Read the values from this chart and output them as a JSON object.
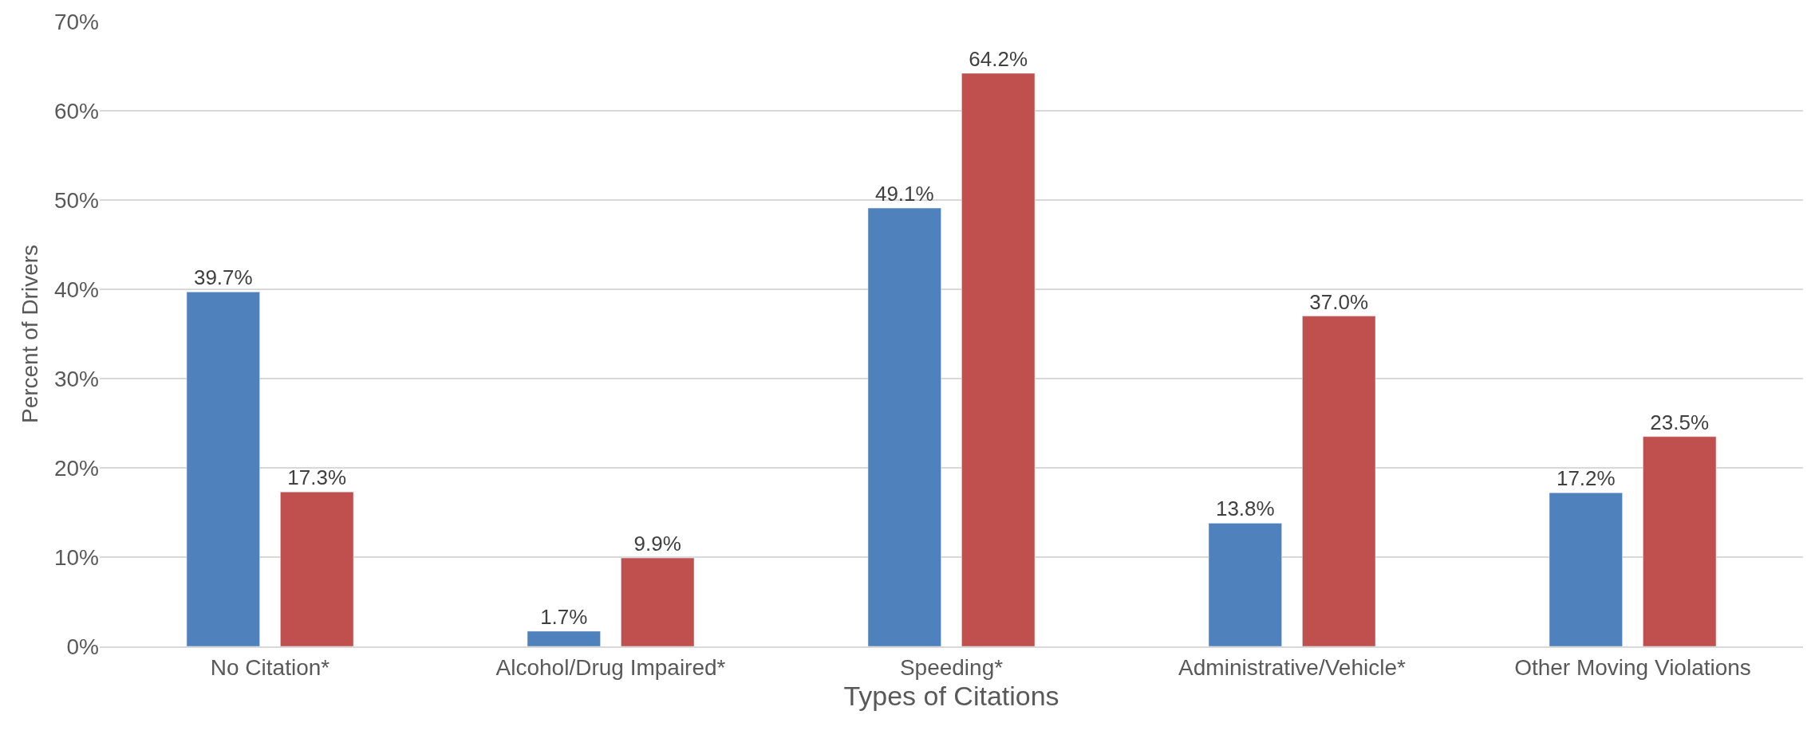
{
  "chart_data": {
    "type": "bar",
    "xlabel": "Types of Citations",
    "ylabel": "Percent of Drivers",
    "categories": [
      "No Citation*",
      "Alcohol/Drug Impaired*",
      "Speeding*",
      "Administrative/Vehicle*",
      "Other Moving Violations"
    ],
    "series": [
      {
        "color": "#4f81bd",
        "values": [
          39.7,
          1.7,
          49.1,
          13.8,
          17.2
        ],
        "value_labels": [
          "39.7%",
          "1.7%",
          "49.1%",
          "13.8%",
          "17.2%"
        ]
      },
      {
        "color": "#c0504d",
        "values": [
          17.3,
          9.9,
          64.2,
          37.0,
          23.5
        ],
        "value_labels": [
          "17.3%",
          "9.9%",
          "64.2%",
          "37.0%",
          "23.5%"
        ]
      }
    ],
    "ylim": [
      0,
      70
    ],
    "yticks": [
      {
        "value": 0,
        "label": "0%"
      },
      {
        "value": 10,
        "label": "10%"
      },
      {
        "value": 20,
        "label": "20%"
      },
      {
        "value": 30,
        "label": "30%"
      },
      {
        "value": 40,
        "label": "40%"
      },
      {
        "value": 50,
        "label": "50%"
      },
      {
        "value": 60,
        "label": "60%"
      },
      {
        "value": 70,
        "label": "70%"
      }
    ],
    "grid": "y"
  }
}
